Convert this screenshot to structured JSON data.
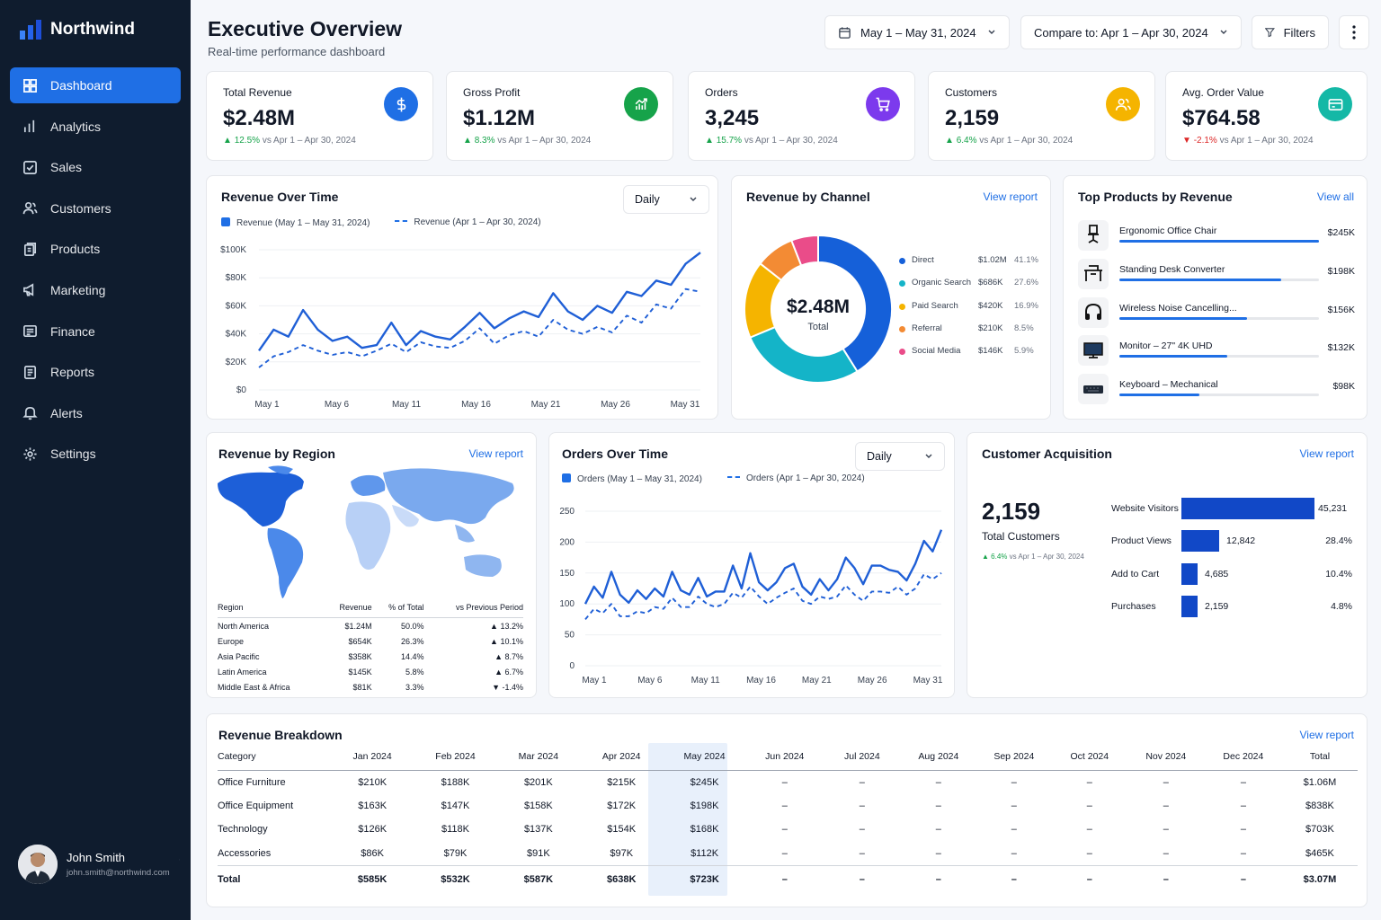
{
  "app": {
    "name": "Northwind"
  },
  "nav": [
    {
      "label": "Dashboard",
      "icon": "grid-icon",
      "active": true
    },
    {
      "label": "Analytics",
      "icon": "bar-chart-icon"
    },
    {
      "label": "Sales",
      "icon": "check-square-icon"
    },
    {
      "label": "Customers",
      "icon": "users-icon"
    },
    {
      "label": "Products",
      "icon": "box-icon"
    },
    {
      "label": "Marketing",
      "icon": "megaphone-icon"
    },
    {
      "label": "Finance",
      "icon": "wallet-icon"
    },
    {
      "label": "Reports",
      "icon": "file-icon"
    },
    {
      "label": "Alerts",
      "icon": "bell-icon"
    },
    {
      "label": "Settings",
      "icon": "gear-icon"
    }
  ],
  "user": {
    "name": "John Smith",
    "email": "john.smith@northwind.com"
  },
  "header": {
    "title": "Executive Overview",
    "subtitle": "Real-time performance dashboard",
    "date_range": "May 1 – May 31, 2024",
    "compare": "Compare to: Apr 1 – Apr 30, 2024",
    "filters": "Filters"
  },
  "kpis": [
    {
      "label": "Total Revenue",
      "value": "$2.48M",
      "delta": "12.5%",
      "dir": "up",
      "vs": "vs Apr 1 – Apr 30, 2024",
      "color": "#1f6fe5",
      "icon": "dollar-icon"
    },
    {
      "label": "Gross Profit",
      "value": "$1.12M",
      "delta": "8.3%",
      "dir": "up",
      "vs": "vs Apr 1 – Apr 30, 2024",
      "color": "#16a34a",
      "icon": "trend-chart-icon"
    },
    {
      "label": "Orders",
      "value": "3,245",
      "delta": "15.7%",
      "dir": "up",
      "vs": "vs Apr 1 – Apr 30, 2024",
      "color": "#7c3aed",
      "icon": "cart-icon"
    },
    {
      "label": "Customers",
      "value": "2,159",
      "delta": "6.4%",
      "dir": "up",
      "vs": "vs Apr 1 – Apr 30, 2024",
      "color": "#f5b400",
      "icon": "users-icon"
    },
    {
      "label": "Avg. Order Value",
      "value": "$764.58",
      "delta": "-2.1%",
      "dir": "down",
      "vs": "vs Apr 1 – Apr 30, 2024",
      "color": "#14b8a6",
      "icon": "card-icon"
    }
  ],
  "revenue_over_time": {
    "title": "Revenue Over Time",
    "select": "Daily",
    "legend_current": "Revenue (May 1 – May 31, 2024)",
    "legend_previous": "Revenue (Apr 1 – Apr 30, 2024)"
  },
  "orders_over_time": {
    "title": "Orders Over Time",
    "select": "Daily",
    "legend_current": "Orders (May 1 – May 31, 2024)",
    "legend_previous": "Orders (Apr 1 – Apr 30, 2024)"
  },
  "chart_data": [
    {
      "type": "line",
      "x_ticks": [
        "May 1",
        "May 6",
        "May 11",
        "May 16",
        "May 21",
        "May 26",
        "May 31"
      ],
      "y_ticks": [
        "$0",
        "$20K",
        "$40K",
        "$60K",
        "$80K",
        "$100K"
      ],
      "ylim": [
        0,
        100000
      ],
      "series": [
        {
          "name": "Revenue (May 1 – May 31, 2024)",
          "values": [
            28000,
            43000,
            38000,
            57000,
            43000,
            35000,
            38000,
            30000,
            32000,
            48000,
            32000,
            42000,
            38000,
            36000,
            45000,
            55000,
            44000,
            51000,
            56000,
            52000,
            69000,
            56000,
            50000,
            60000,
            55000,
            70000,
            67000,
            78000,
            75000,
            90000,
            98000
          ]
        },
        {
          "name": "Revenue (Apr 1 – Apr 30, 2024)",
          "values": [
            16000,
            24000,
            27000,
            32000,
            28000,
            25000,
            27000,
            24000,
            28000,
            33000,
            27000,
            34000,
            31000,
            30000,
            35000,
            44000,
            33000,
            39000,
            42000,
            38000,
            50000,
            43000,
            40000,
            45000,
            41000,
            53000,
            48000,
            61000,
            58000,
            72000,
            70000
          ]
        }
      ]
    },
    {
      "type": "pie",
      "title": "Revenue by Channel",
      "center_value": "$2.48M",
      "center_label": "Total",
      "slices": [
        {
          "name": "Direct",
          "value": "$1.02M",
          "pct": 41.1,
          "pct_label": "41.1%",
          "color": "#1560d9"
        },
        {
          "name": "Organic Search",
          "value": "$686K",
          "pct": 27.6,
          "pct_label": "27.6%",
          "color": "#14b4c8"
        },
        {
          "name": "Paid Search",
          "value": "$420K",
          "pct": 16.9,
          "pct_label": "16.9%",
          "color": "#f5b400"
        },
        {
          "name": "Referral",
          "value": "$210K",
          "pct": 8.5,
          "pct_label": "8.5%",
          "color": "#f38b34"
        },
        {
          "name": "Social Media",
          "value": "$146K",
          "pct": 5.9,
          "pct_label": "5.9%",
          "color": "#ea4c89"
        }
      ]
    },
    {
      "type": "line",
      "x_ticks": [
        "May 1",
        "May 6",
        "May 11",
        "May 16",
        "May 21",
        "May 26",
        "May 31"
      ],
      "y_ticks": [
        "0",
        "50",
        "100",
        "150",
        "200",
        "250"
      ],
      "ylim": [
        0,
        250
      ],
      "series": [
        {
          "name": "Orders (May 1 – May 31, 2024)",
          "values": [
            100,
            128,
            110,
            152,
            115,
            102,
            122,
            108,
            125,
            112,
            152,
            122,
            115,
            142,
            112,
            120,
            120,
            162,
            125,
            182,
            135,
            122,
            135,
            158,
            165,
            128,
            115,
            140,
            122,
            140,
            175,
            158,
            132,
            162,
            162,
            155,
            152,
            138,
            165,
            202,
            185,
            220
          ]
        },
        {
          "name": "Orders (Apr 1 – Apr 30, 2024)",
          "values": [
            75,
            92,
            85,
            100,
            80,
            80,
            88,
            85,
            95,
            92,
            110,
            95,
            95,
            112,
            100,
            95,
            100,
            118,
            110,
            128,
            112,
            100,
            110,
            118,
            125,
            105,
            100,
            112,
            108,
            112,
            130,
            115,
            105,
            120,
            120,
            118,
            128,
            115,
            125,
            148,
            140,
            150
          ]
        }
      ]
    },
    {
      "type": "bar",
      "title": "Customer Acquisition",
      "categories": [
        "Website Visitors",
        "Product Views",
        "Add to Cart",
        "Purchases"
      ],
      "values": [
        45231,
        12842,
        4685,
        2159
      ],
      "value_labels": [
        "45,231",
        "12,842",
        "4,685",
        "2,159"
      ],
      "pct_labels": [
        "",
        "28.4%",
        "10.4%",
        "4.8%"
      ]
    }
  ],
  "channel": {
    "title": "Revenue by Channel",
    "link": "View report"
  },
  "top_products": {
    "title": "Top Products by Revenue",
    "link": "View all",
    "items": [
      {
        "name": "Ergonomic Office Chair",
        "value": "$245K",
        "share": 1.0,
        "icon": "chair-icon"
      },
      {
        "name": "Standing Desk Converter",
        "value": "$198K",
        "share": 0.81,
        "icon": "desk-icon"
      },
      {
        "name": "Wireless Noise Cancelling...",
        "value": "$156K",
        "share": 0.64,
        "icon": "headphones-icon"
      },
      {
        "name": "Monitor – 27\" 4K UHD",
        "value": "$132K",
        "share": 0.54,
        "icon": "monitor-icon"
      },
      {
        "name": "Keyboard – Mechanical",
        "value": "$98K",
        "share": 0.4,
        "icon": "keyboard-icon"
      }
    ]
  },
  "region": {
    "title": "Revenue by Region",
    "link": "View report",
    "headers": [
      "Region",
      "Revenue",
      "% of Total",
      "vs Previous Period"
    ],
    "rows": [
      {
        "region": "North America",
        "revenue": "$1.24M",
        "pct": "50.0%",
        "delta": "13.2%",
        "dir": "up"
      },
      {
        "region": "Europe",
        "revenue": "$654K",
        "pct": "26.3%",
        "delta": "10.1%",
        "dir": "up"
      },
      {
        "region": "Asia Pacific",
        "revenue": "$358K",
        "pct": "14.4%",
        "delta": "8.7%",
        "dir": "up"
      },
      {
        "region": "Latin America",
        "revenue": "$145K",
        "pct": "5.8%",
        "delta": "6.7%",
        "dir": "up"
      },
      {
        "region": "Middle East & Africa",
        "revenue": "$81K",
        "pct": "3.3%",
        "delta": "-1.4%",
        "dir": "down"
      }
    ]
  },
  "acquisition": {
    "title": "Customer Acquisition",
    "link": "View report",
    "value": "2,159",
    "label": "Total Customers",
    "delta": "6.4%",
    "vs": "vs Apr 1 – Apr 30, 2024"
  },
  "breakdown": {
    "title": "Revenue Breakdown",
    "link": "View report",
    "headers": [
      "Category",
      "Jan 2024",
      "Feb 2024",
      "Mar 2024",
      "Apr 2024",
      "May 2024",
      "Jun 2024",
      "Jul 2024",
      "Aug 2024",
      "Sep 2024",
      "Oct 2024",
      "Nov 2024",
      "Dec 2024",
      "Total"
    ],
    "rows": [
      [
        "Office Furniture",
        "$210K",
        "$188K",
        "$201K",
        "$215K",
        "$245K",
        "–",
        "–",
        "–",
        "–",
        "–",
        "–",
        "–",
        "$1.06M"
      ],
      [
        "Office Equipment",
        "$163K",
        "$147K",
        "$158K",
        "$172K",
        "$198K",
        "–",
        "–",
        "–",
        "–",
        "–",
        "–",
        "–",
        "$838K"
      ],
      [
        "Technology",
        "$126K",
        "$118K",
        "$137K",
        "$154K",
        "$168K",
        "–",
        "–",
        "–",
        "–",
        "–",
        "–",
        "–",
        "$703K"
      ],
      [
        "Accessories",
        "$86K",
        "$79K",
        "$91K",
        "$97K",
        "$112K",
        "–",
        "–",
        "–",
        "–",
        "–",
        "–",
        "–",
        "$465K"
      ]
    ],
    "total": [
      "Total",
      "$585K",
      "$532K",
      "$587K",
      "$638K",
      "$723K",
      "–",
      "–",
      "–",
      "–",
      "–",
      "–",
      "–",
      "$3.07M"
    ]
  }
}
